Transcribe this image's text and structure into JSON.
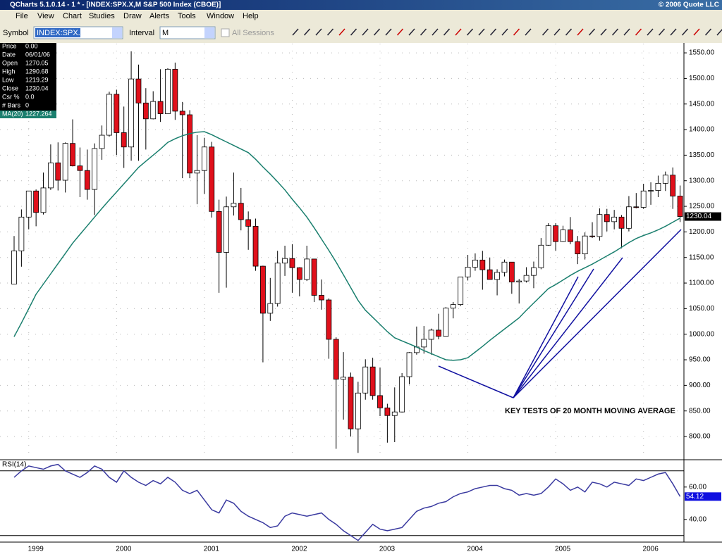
{
  "window": {
    "title": "QCharts 5.1.0.14 - 1 * - [INDEX:SPX.X,M S&P 500 Index (CBOE)]",
    "copyright": "© 2006 Quote LLC",
    "menu": [
      "File",
      "View",
      "Chart",
      "Studies",
      "Draw",
      "Alerts",
      "Tools",
      "Window",
      "Help"
    ],
    "toolbar": {
      "symbol_label": "Symbol",
      "symbol": "INDEX:SPX.X",
      "interval_label": "Interval",
      "interval": "M",
      "sessions": "All Sessions"
    }
  },
  "info": [
    {
      "label": "Price",
      "value": "0.00"
    },
    {
      "label": "Date",
      "value": "06/01/06"
    },
    {
      "label": "Open",
      "value": "1270.05"
    },
    {
      "label": "High",
      "value": "1290.68"
    },
    {
      "label": "Low",
      "value": "1219.29"
    },
    {
      "label": "Close",
      "value": "1230.04"
    },
    {
      "label": "Csr %",
      "value": "0.0"
    },
    {
      "label": "# Bars",
      "value": "0"
    }
  ],
  "chart_data": [
    {
      "type": "candlestick",
      "up_color": "#ffffff",
      "down_color": "#e0101b",
      "grid": true,
      "categories": [
        null,
        null,
        "1999",
        null,
        null,
        null,
        null,
        null,
        null,
        null,
        null,
        null,
        null,
        null,
        "2000",
        null,
        null,
        null,
        null,
        null,
        null,
        null,
        null,
        null,
        null,
        null,
        "2001",
        null,
        null,
        null,
        null,
        null,
        null,
        null,
        null,
        null,
        null,
        null,
        "2002",
        null,
        null,
        null,
        null,
        null,
        null,
        null,
        null,
        null,
        null,
        null,
        "2003",
        null,
        null,
        null,
        null,
        null,
        null,
        null,
        null,
        null,
        null,
        null,
        "2004",
        null,
        null,
        null,
        null,
        null,
        null,
        null,
        null,
        null,
        null,
        null,
        "2005",
        null,
        null,
        null,
        null,
        null,
        null,
        null,
        null,
        null,
        null,
        null,
        "2006",
        null,
        null,
        null,
        null,
        null
      ],
      "open": [
        1098,
        1163,
        1229,
        1280,
        1238,
        1286,
        1335,
        1301,
        1373,
        1329,
        1320,
        1283,
        1363,
        1389,
        1469,
        1394,
        1366,
        1499,
        1452,
        1421,
        1455,
        1431,
        1518,
        1436,
        1429,
        1315,
        1320,
        1366,
        1240,
        1160,
        1249,
        1256,
        1224,
        1211,
        1133,
        1041,
        1060,
        1139,
        1148,
        1130,
        1107,
        1147,
        1076,
        1067,
        990,
        912,
        916,
        815,
        885,
        936,
        880,
        856,
        841,
        848,
        917,
        964,
        975,
        990,
        1008,
        996,
        1051,
        1058,
        1112,
        1131,
        1145,
        1126,
        1107,
        1121,
        1141,
        1102,
        1104,
        1115,
        1130,
        1174,
        1212,
        1181,
        1204,
        1181,
        1157,
        1192,
        1191,
        1234,
        1220,
        1229,
        1207,
        1249,
        1248,
        1280,
        1281,
        1295,
        1311,
        1270.05
      ],
      "high": [
        1192,
        1244,
        1280,
        1283,
        1316,
        1371,
        1375,
        1375,
        1420,
        1365,
        1361,
        1373,
        1408,
        1474,
        1478,
        1445,
        1553,
        1527,
        1481,
        1475,
        1518,
        1520,
        1531,
        1454,
        1438,
        1389,
        1384,
        1376,
        1263,
        1269,
        1316,
        1286,
        1240,
        1226,
        1134,
        1110,
        1163,
        1173,
        1176,
        1131,
        1173,
        1147,
        1107,
        1070,
        994,
        965,
        925,
        907,
        951,
        954,
        935,
        864,
        896,
        924,
        965,
        1015,
        1016,
        1011,
        1040,
        1053,
        1063,
        1112,
        1155,
        1158,
        1163,
        1150,
        1127,
        1146,
        1141,
        1108,
        1131,
        1142,
        1188,
        1217,
        1217,
        1212,
        1229,
        1192,
        1199,
        1219,
        1246,
        1245,
        1243,
        1233,
        1270,
        1276,
        1294,
        1297,
        1310,
        1318,
        1326,
        1290.68
      ],
      "low": [
        1098,
        1132,
        1205,
        1211,
        1234,
        1282,
        1281,
        1277,
        1328,
        1268,
        1263,
        1233,
        1341,
        1386,
        1350,
        1325,
        1339,
        1339,
        1361,
        1420,
        1415,
        1431,
        1419,
        1305,
        1305,
        1254,
        1274,
        1228,
        1081,
        1091,
        1232,
        1203,
        1165,
        1124,
        945,
        1026,
        1054,
        1114,
        1081,
        1074,
        1104,
        1063,
        1048,
        952,
        776,
        833,
        800,
        768,
        872,
        872,
        840,
        788,
        789,
        847,
        902,
        960,
        962,
        960,
        990,
        996,
        1031,
        1055,
        1105,
        1124,
        1087,
        1107,
        1076,
        1113,
        1079,
        1060,
        1101,
        1090,
        1127,
        1173,
        1163,
        1180,
        1176,
        1137,
        1146,
        1188,
        1183,
        1201,
        1205,
        1168,
        1201,
        1246,
        1245,
        1253,
        1268,
        1280,
        1245,
        1219.29
      ],
      "close": [
        1163,
        1229,
        1280,
        1238,
        1286,
        1335,
        1301,
        1373,
        1329,
        1320,
        1283,
        1363,
        1389,
        1469,
        1394,
        1366,
        1499,
        1452,
        1421,
        1455,
        1431,
        1518,
        1436,
        1429,
        1315,
        1320,
        1366,
        1240,
        1160,
        1249,
        1256,
        1224,
        1211,
        1133,
        1041,
        1060,
        1139,
        1148,
        1130,
        1107,
        1147,
        1076,
        1067,
        990,
        912,
        916,
        815,
        885,
        936,
        880,
        856,
        841,
        848,
        917,
        964,
        975,
        990,
        1008,
        996,
        1051,
        1058,
        1112,
        1131,
        1145,
        1126,
        1107,
        1121,
        1141,
        1102,
        1104,
        1115,
        1130,
        1174,
        1212,
        1181,
        1204,
        1181,
        1157,
        1192,
        1191,
        1234,
        1220,
        1229,
        1207,
        1249,
        1248,
        1280,
        1281,
        1295,
        1311,
        1270,
        1230.04
      ],
      "series": [
        {
          "name": "MA(20)",
          "color": "#1a7f6e",
          "values": [
            995,
            1022,
            1050,
            1078,
            1098,
            1118,
            1138,
            1158,
            1178,
            1195,
            1212,
            1229,
            1246,
            1262,
            1278,
            1294,
            1310,
            1326,
            1338,
            1350,
            1362,
            1375,
            1382,
            1388,
            1392,
            1395,
            1396,
            1390,
            1383,
            1376,
            1369,
            1362,
            1355,
            1342,
            1327,
            1313,
            1298,
            1282,
            1264,
            1247,
            1229,
            1208,
            1186,
            1164,
            1141,
            1116,
            1091,
            1066,
            1047,
            1033,
            1019,
            1005,
            993,
            987,
            981,
            975,
            968,
            962,
            956,
            950,
            949,
            950,
            954,
            965,
            976,
            988,
            999,
            1010,
            1021,
            1032,
            1047,
            1061,
            1075,
            1089,
            1097,
            1106,
            1115,
            1123,
            1130,
            1137,
            1145,
            1153,
            1161,
            1170,
            1179,
            1187,
            1193,
            1198,
            1204,
            1211,
            1219,
            1227
          ]
        }
      ],
      "ma_value": "1227.264",
      "last_label": "1230.04",
      "ylim": [
        756,
        1568
      ],
      "yticks": [
        {
          "value": 800,
          "label": "800.00"
        },
        {
          "value": 850,
          "label": "850.00"
        },
        {
          "value": 900,
          "label": "900.00"
        },
        {
          "value": 950,
          "label": "950.00"
        },
        {
          "value": 1000,
          "label": "1000.00"
        },
        {
          "value": 1050,
          "label": "1050.00"
        },
        {
          "value": 1100,
          "label": "1100.00"
        },
        {
          "value": 1150,
          "label": "1150.00"
        },
        {
          "value": 1200,
          "label": "1200.00"
        },
        {
          "value": 1250,
          "label": "1250.00"
        },
        {
          "value": 1300,
          "label": "1300.00"
        },
        {
          "value": 1350,
          "label": "1350.00"
        },
        {
          "value": 1400,
          "label": "1400.00"
        },
        {
          "value": 1450,
          "label": "1450.00"
        },
        {
          "value": 1500,
          "label": "1500.00"
        },
        {
          "value": 1550,
          "label": "1550.00"
        }
      ],
      "annotation": "KEY TESTS OF 20 MONTH MOVING AVERAGE"
    },
    {
      "type": "line",
      "title": "RSI(14)",
      "color": "#3a3aa0",
      "values": [
        66,
        70,
        73,
        72,
        71,
        73,
        74,
        70,
        68,
        66,
        69,
        73,
        71,
        66,
        63,
        70,
        66,
        63,
        61,
        64,
        62,
        66,
        63,
        58,
        56,
        58,
        52,
        46,
        44,
        52,
        50,
        45,
        42,
        40,
        38,
        35,
        36,
        42,
        44,
        43,
        42,
        43,
        44,
        40,
        37,
        33,
        30,
        27,
        32,
        37,
        34,
        33,
        34,
        35,
        40,
        45,
        47,
        48,
        50,
        51,
        54,
        56,
        57,
        59,
        60,
        61,
        61,
        59,
        58,
        55,
        56,
        55,
        56,
        60,
        65,
        62,
        58,
        60,
        57,
        63,
        62,
        60,
        63,
        62,
        61,
        65,
        64,
        66,
        68,
        69,
        62,
        54.12
      ],
      "last_label": "54.12",
      "levels": [
        70,
        30
      ],
      "ylim": [
        26,
        76
      ],
      "yticks": [
        {
          "value": 60,
          "label": "60.00"
        },
        {
          "value": 40,
          "label": "40.00"
        }
      ]
    }
  ]
}
